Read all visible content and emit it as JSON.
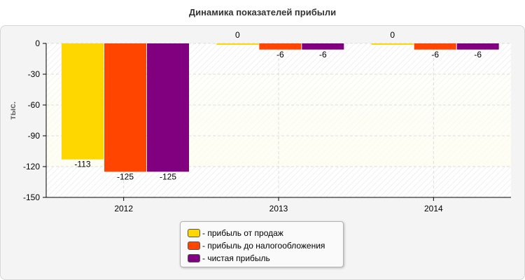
{
  "chart_data": {
    "type": "bar",
    "title": "Динамика показателей прибыли",
    "ylabel": "тыс.",
    "xlabel": "",
    "categories": [
      "2012",
      "2013",
      "2014"
    ],
    "ylim": [
      -150,
      0
    ],
    "yticks": [
      0,
      -30,
      -60,
      -90,
      -120,
      -150
    ],
    "ytick_labels": [
      "0",
      "-30",
      "-60",
      "-90",
      "-120",
      "-150"
    ],
    "grid": true,
    "legend_position": "bottom-center",
    "series": [
      {
        "name": "- прибыль от продаж",
        "color": "#FFD700",
        "values": [
          -113,
          0,
          0
        ],
        "labels": [
          "-113",
          "0",
          "0"
        ]
      },
      {
        "name": "- прибыль до налогообложения",
        "color": "#FF4500",
        "values": [
          -125,
          -6,
          -6
        ],
        "labels": [
          "-125",
          "-6",
          "-6"
        ]
      },
      {
        "name": "- чистая прибыль",
        "color": "#800080",
        "values": [
          -125,
          -6,
          -6
        ],
        "labels": [
          "-125",
          "-6",
          "-6"
        ]
      }
    ]
  }
}
